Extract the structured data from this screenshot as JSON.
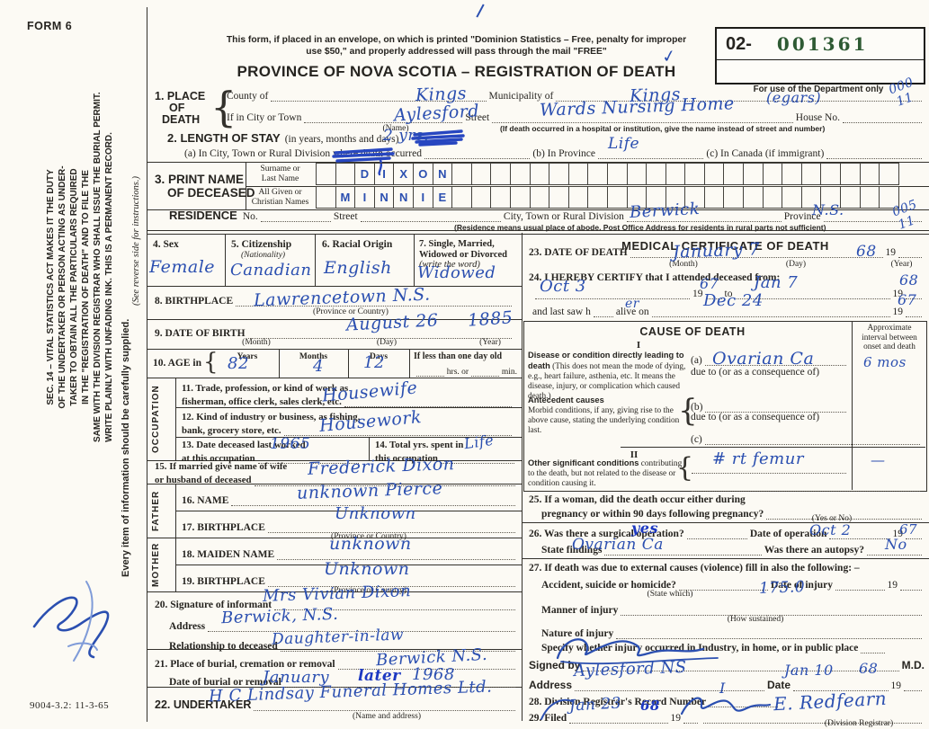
{
  "colors": {
    "ink": "#2b4fb0",
    "ink_dark": "#1d39c2",
    "serial_green": "#2e5a33",
    "paper": "#fcfaf4"
  },
  "form": {
    "form_no": "FORM 6",
    "bottom_code": "9004-3.2: 11-3-65"
  },
  "margin": {
    "sec14": [
      "SEC. 14 – VITAL STATISTICS ACT MAKES IT THE DUTY",
      "OF THE UNDERTAKER OR PERSON ACTING AS UNDER-",
      "TAKER TO OBTAIN ALL THE PARTICULARS REQUIRED",
      "IN THE \"REGISTRATION OF DEATH\" AND TO FILE THE",
      "SAME WITH THE DIVISION REGISTRAR WHO SHALL ISSUE THE BURIAL PERMIT.",
      "WRITE PLAINLY WITH UNFADING INK. THIS IS A PERMANENT RECORD."
    ],
    "every_item": "Every item of information should be carefully supplied.",
    "reverse": "(See reverse side for instructions.)"
  },
  "header": {
    "mail1": "This form, if placed in an envelope, on which is printed \"Dominion Statistics – Free, penalty for improper",
    "mail2": "use $50,\" and properly addressed will pass through the mail \"FREE\"",
    "title": "PROVINCE OF NOVA SCOTIA – REGISTRATION OF DEATH",
    "serial_prefix": "02-",
    "serial_number": "001361",
    "dept_only": "For use of the Department only"
  },
  "place": {
    "p1": "1. PLACE",
    "p2": "OF",
    "p3": "DEATH",
    "county_label": "County of",
    "muni_label": "Municipality of",
    "city_label": "If in City or Town",
    "street_label": "Street"
  },
  "stay": {
    "s_b": "2. LENGTH OF STAY",
    "s_r": "(in years, months and days)",
    "a": "(a) In City, Town or Rural Division where death occurred",
    "b": "(b) In Province",
    "c": "(c) In Canada (if immigrant)"
  },
  "print_name": {
    "label1": "3. PRINT NAME",
    "label2": "OF DECEASED",
    "surname_label1": "Surname or",
    "surname_label2": "Last Name",
    "given_label1": "All Given or",
    "given_label2": "Christian Names",
    "surname": "DIXON",
    "given": "MINNIE"
  },
  "residence": {
    "r": "RESIDENCE",
    "no": "No.",
    "street": "Street",
    "city": "City, Town or Rural Division",
    "prov": "Province",
    "note": "(Residence means usual place of abode. Post Office Address for residents in rural parts not sufficient)"
  },
  "personal": {
    "c1": "4. Sex",
    "c2a": "5. Citizenship",
    "c2b": "(Nationality)",
    "c3": "6. Racial Origin",
    "c4a": "7. Single, Married,",
    "c4b": "Widowed or Divorced",
    "c4c": "(write the word)",
    "bp": "8. BIRTHPLACE",
    "dob": "9. DATE OF BIRTH",
    "age": "10. AGE in",
    "years": "Years",
    "months": "Months",
    "days": "Days",
    "less1": "If less than one day old",
    "less2": "hrs. or",
    "less3": "min."
  },
  "occupation": {
    "side": "OCCUPATION",
    "t1": "11. Trade, profession, or kind of work as",
    "t2": "fisherman, office clerk, sales clerk, etc.",
    "i1": "12. Kind of industry or business, as fishing,",
    "i2": "bank, grocery store, etc.",
    "lw1": "13. Date deceased last worked",
    "lw2": "at this occupation",
    "ty1": "14. Total yrs. spent in",
    "ty2": "this occupation"
  },
  "spouse": {
    "s1": "15. If married give name of wife",
    "s2": "or husband of deceased"
  },
  "father": {
    "side": "FATHER",
    "name": "16. NAME",
    "bp": "17. BIRTHPLACE"
  },
  "mother": {
    "side": "MOTHER",
    "maiden": "18. MAIDEN NAME",
    "bp": "19. BIRTHPLACE"
  },
  "informant": {
    "sig": "20. Signature of informant",
    "addr": "Address",
    "rel": "Relationship to deceased"
  },
  "burial": {
    "b1": "21. Place of burial, cremation or removal",
    "b2": "Date of burial or removal"
  },
  "undertaker": {
    "u": "22. UNDERTAKER",
    "note": "(Name and address)"
  },
  "medical": {
    "title": "MEDICAL CERTIFICATE OF DEATH",
    "dod": "23. DATE OF DEATH",
    "certify": "24. I HEREBY CERTIFY that I attended deceased from:",
    "to": "to",
    "saw1": "and last saw h",
    "saw2": "alive on",
    "cause_title": "CAUSE OF DEATH",
    "interval": "Approximate interval between onset and death",
    "p1": "I",
    "p2": "II",
    "disease_b": "Disease or condition directly leading to death",
    "disease_r": "(This does not mean the mode of dying, e.g., heart failure, asthenia, etc. It means the disease, injury, or complication which caused death.)",
    "a": "(a)",
    "due": "due to (or as a consequence of)",
    "bq": "(b)",
    "cq": "(c)",
    "ante_b": "Antecedent causes",
    "ante_r": "Morbid conditions, if any, giving rise to the above cause, stating the underlying condition last.",
    "other_b": "Other significant conditions",
    "other_r": "contributing to the death, but not related to the disease or condition causing it.",
    "q25a": "25. If a woman, did the death occur either during",
    "q25b": "pregnancy or within 90 days following pregnancy?",
    "yes_no": "(Yes or No)",
    "q26": "26. Was there a surgical operation?",
    "q26d": "Date of operation",
    "q26f": "State findings",
    "q26a": "Was there an autopsy?",
    "q27": "27. If death was due to external causes (violence) fill in also the following: –",
    "q27a": "Accident, suicide or homicide?",
    "sw": "(State which)",
    "q27d": "Date of injury",
    "q27m": "Manner of injury",
    "hs": "(How sustained)",
    "q27n": "Nature of injury",
    "q27s": "Specify whether injury occurred in Industry, in home, or in public place",
    "signed": "Signed by",
    "md": "M.D.",
    "addr": "Address",
    "date": "Date",
    "q28": "28. Division Registrar's Record Number",
    "q29": "29. Filed",
    "dr": "(Division Registrar)"
  },
  "notes": {
    "n19": "19",
    "month": "(Month)",
    "day": "(Day)",
    "year": "(Year)",
    "name": "(Name)",
    "pc": "(Province or Country)",
    "house": "House No.",
    "hosp": "(If death occurred in a hospital or institution, give the name instead of street and number)"
  },
  "ink": {
    "county": "Kings",
    "municipality": "Kings",
    "municipality_note": "(egars)",
    "dept_code_top": "000",
    "dept_code_bottom": "11",
    "city": "Aylesford",
    "street": "Wards Nursing Home",
    "stay": "2 yrs.",
    "stay_province": "Life",
    "res_city": "Berwick",
    "res_prov": "N.S.",
    "res_code_top": "005",
    "res_code_bottom": "11",
    "sex": "Female",
    "citizenship": "Canadian",
    "racial": "English",
    "marital": "Widowed",
    "birthplace": "Lawrencetown N.S.",
    "dob_md": "August 26",
    "dob_y": "1885",
    "age_y": "82",
    "age_m": "4",
    "age_d": "12",
    "trade": "Housewife",
    "industry": "Housework",
    "last_worked": "1965",
    "total_yrs": "Life",
    "spouse": "Frederick Dixon",
    "father_name": "unknown Pierce",
    "father_bp": "Unknown",
    "mother_maiden": "unknown",
    "mother_bp": "Unknown",
    "informant": "Mrs Vivian Dixon",
    "informant_addr": "Berwick, N.S.",
    "relationship": "Daughter-in-law",
    "burial_place": "Berwick N.S.",
    "burial_month": "January",
    "burial_over": "later",
    "burial_year": "1968",
    "undertaker": "H C Lindsay Funeral Homes Ltd.",
    "dod_md": "January 7",
    "dod_y": "68",
    "att_from": "Oct 3",
    "att_from_y": "67",
    "att_to": "Jan 7",
    "att_to_y": "68",
    "saw_fill": "er",
    "saw_date": "Dec 24",
    "saw_y": "67",
    "cause_a": "Ovarian Ca",
    "cause_a_int": "6 mos",
    "other_cond": "# rt femur",
    "other_int": "—",
    "operation": "yes",
    "op_date": "Oct 2",
    "op_y": "67",
    "findings": "Ovarian Ca",
    "autopsy": "No",
    "manner_code": "175.0",
    "dr_addr": "Aylesford NS",
    "dr_date": "Jan 10",
    "dr_date_y": "68",
    "record_no": "I",
    "filed_date": "Jan 23",
    "filed_y": "68",
    "registrar": "E. Redfearn"
  }
}
